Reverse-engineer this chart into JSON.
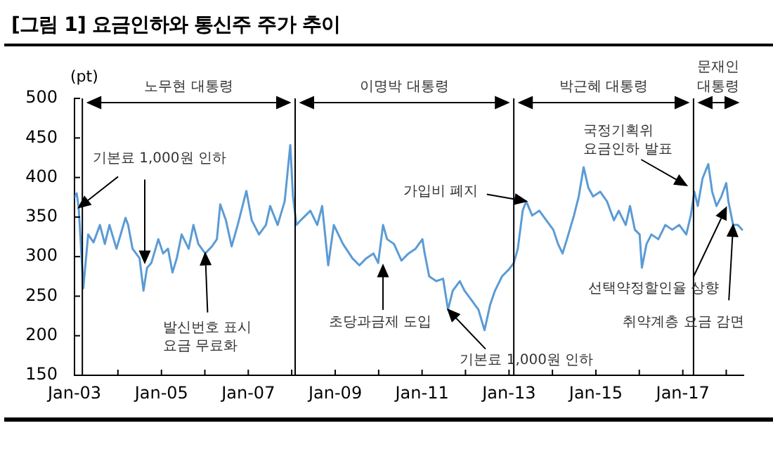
{
  "chart_data": {
    "type": "line",
    "title": "[그림 1] 요금인하와 통신주 주가 추이",
    "ylabel": "(pt)",
    "x": [
      "2003-01-02",
      "2003-01-20",
      "2003-02-05",
      "2003-02-22",
      "2003-03-16",
      "2003-04-26",
      "2003-06-10",
      "2003-08-03",
      "2003-09-13",
      "2003-10-22",
      "2003-12-20",
      "2004-03-05",
      "2004-03-27",
      "2004-05-03",
      "2004-07-01",
      "2004-08-03",
      "2004-09-02",
      "2004-10-08",
      "2004-12-06",
      "2005-01-15",
      "2005-02-25",
      "2005-04-04",
      "2005-05-10",
      "2005-06-20",
      "2005-08-18",
      "2005-09-27",
      "2005-11-07",
      "2006-01-04",
      "2006-03-02",
      "2006-04-12",
      "2006-05-10",
      "2006-06-27",
      "2006-08-14",
      "2006-10-04",
      "2006-12-16",
      "2007-01-30",
      "2007-04-01",
      "2007-05-29",
      "2007-07-04",
      "2007-09-05",
      "2007-11-03",
      "2007-12-20",
      "2008-01-12",
      "2008-02-10",
      "2008-03-17",
      "2008-06-06",
      "2008-08-03",
      "2008-09-13",
      "2008-11-03",
      "2008-12-20",
      "2009-03-07",
      "2009-05-25",
      "2009-07-23",
      "2009-09-20",
      "2009-11-18",
      "2009-12-28",
      "2010-02-07",
      "2010-03-13",
      "2010-05-10",
      "2010-07-12",
      "2010-09-09",
      "2010-11-07",
      "2011-01-04",
      "2011-01-23",
      "2011-03-02",
      "2011-04-30",
      "2011-06-27",
      "2011-08-07",
      "2011-09-16",
      "2011-11-14",
      "2011-12-24",
      "2012-02-21",
      "2012-04-19",
      "2012-06-09",
      "2012-07-26",
      "2012-09-05",
      "2012-11-03",
      "2013-01-01",
      "2013-02-10",
      "2013-03-16",
      "2013-04-26",
      "2013-05-25",
      "2013-07-15",
      "2013-09-13",
      "2013-11-10",
      "2014-01-08",
      "2014-02-17",
      "2014-03-27",
      "2014-05-03",
      "2014-07-01",
      "2014-08-10",
      "2014-09-20",
      "2014-10-30",
      "2014-12-09",
      "2015-02-07",
      "2015-04-04",
      "2015-06-02",
      "2015-07-12",
      "2015-09-09",
      "2015-10-15",
      "2015-11-25",
      "2016-01-04",
      "2016-01-23",
      "2016-03-02",
      "2016-04-12",
      "2016-06-09",
      "2016-08-07",
      "2016-10-04",
      "2016-12-02",
      "2017-01-30",
      "2017-03-09",
      "2017-04-08",
      "2017-05-07",
      "2017-06-16",
      "2017-08-03",
      "2017-09-05",
      "2017-10-11",
      "2017-11-21",
      "2018-01-01",
      "2018-01-19",
      "2018-02-28",
      "2018-04-08",
      "2018-05-14"
    ],
    "values": [
      375,
      380,
      362,
      320,
      260,
      328,
      318,
      340,
      316,
      340,
      310,
      349,
      340,
      310,
      298,
      257,
      286,
      292,
      322,
      304,
      310,
      280,
      298,
      328,
      310,
      340,
      316,
      304,
      313,
      322,
      366,
      346,
      313,
      340,
      383,
      346,
      328,
      340,
      364,
      340,
      370,
      441,
      376,
      340,
      346,
      358,
      340,
      364,
      289,
      340,
      316,
      298,
      289,
      298,
      304,
      292,
      340,
      322,
      316,
      295,
      304,
      310,
      322,
      304,
      275,
      269,
      272,
      233,
      257,
      269,
      257,
      245,
      233,
      207,
      239,
      257,
      275,
      284,
      292,
      310,
      358,
      370,
      352,
      358,
      346,
      334,
      316,
      304,
      322,
      352,
      376,
      413,
      387,
      376,
      382,
      370,
      346,
      358,
      340,
      364,
      334,
      328,
      286,
      316,
      328,
      322,
      340,
      334,
      340,
      328,
      352,
      382,
      364,
      399,
      417,
      382,
      364,
      376,
      393,
      370,
      340,
      340,
      334
    ],
    "color": "#5b9bd5",
    "marker": "none",
    "line_style": "solid",
    "grid": false,
    "legend": false,
    "xlim": [
      "2003-01-01",
      "2018-05-26"
    ],
    "xticks": [
      {
        "value": "2003-01",
        "label": "Jan-03"
      },
      {
        "value": "2004-01",
        "label": null
      },
      {
        "value": "2005-01",
        "label": "Jan-05"
      },
      {
        "value": "2006-01",
        "label": null
      },
      {
        "value": "2007-01",
        "label": "Jan-07"
      },
      {
        "value": "2008-01",
        "label": null
      },
      {
        "value": "2009-01",
        "label": "Jan-09"
      },
      {
        "value": "2010-01",
        "label": null
      },
      {
        "value": "2011-01",
        "label": "Jan-11"
      },
      {
        "value": "2012-01",
        "label": null
      },
      {
        "value": "2013-01",
        "label": "Jan-13"
      },
      {
        "value": "2014-01",
        "label": null
      },
      {
        "value": "2015-01",
        "label": "Jan-15"
      },
      {
        "value": "2016-01",
        "label": null
      },
      {
        "value": "2017-01",
        "label": "Jan-17"
      },
      {
        "value": "2018-01",
        "label": null
      }
    ],
    "ylim": [
      150,
      500
    ],
    "yticks": [
      150,
      200,
      250,
      300,
      350,
      400,
      450,
      500
    ],
    "ref_lines": [
      {
        "axis": "x",
        "value": "2003-03-08",
        "color": "#000000"
      },
      {
        "axis": "x",
        "value": "2008-01-30",
        "color": "#000000"
      },
      {
        "axis": "x",
        "value": "2013-02-10",
        "color": "#000000"
      },
      {
        "axis": "x",
        "value": "2017-04-01",
        "color": "#000000"
      }
    ],
    "annotations": [
      "노무현 대통령",
      "이명박 대통령",
      "박근혜 대통령",
      "문재인\n대통령",
      {
        "text": "기본료 1,000원 인하",
        "x": "2003-02-05",
        "y": 362
      },
      {
        "text": "발신번호 표시\n요금 무료화",
        "x": "2006-01-04",
        "y": 304
      },
      {
        "text": "초당과금제 도입",
        "x": "2010-02-06",
        "y": 289
      },
      {
        "text": "기본료 1,000원 인하",
        "x": "2011-08-07",
        "y": 233
      },
      {
        "text": "가입비 폐지",
        "x": "2013-05-25",
        "y": 370
      },
      {
        "text": "국정기획위\n요금인하 발표",
        "x": "2017-02-01",
        "y": 390
      },
      {
        "text": "선택약정할인율 상향",
        "x": "2018-01-01",
        "y": 362
      },
      {
        "text": "취약계층 요금 감면",
        "x": "2018-02-28",
        "y": 340
      }
    ]
  }
}
